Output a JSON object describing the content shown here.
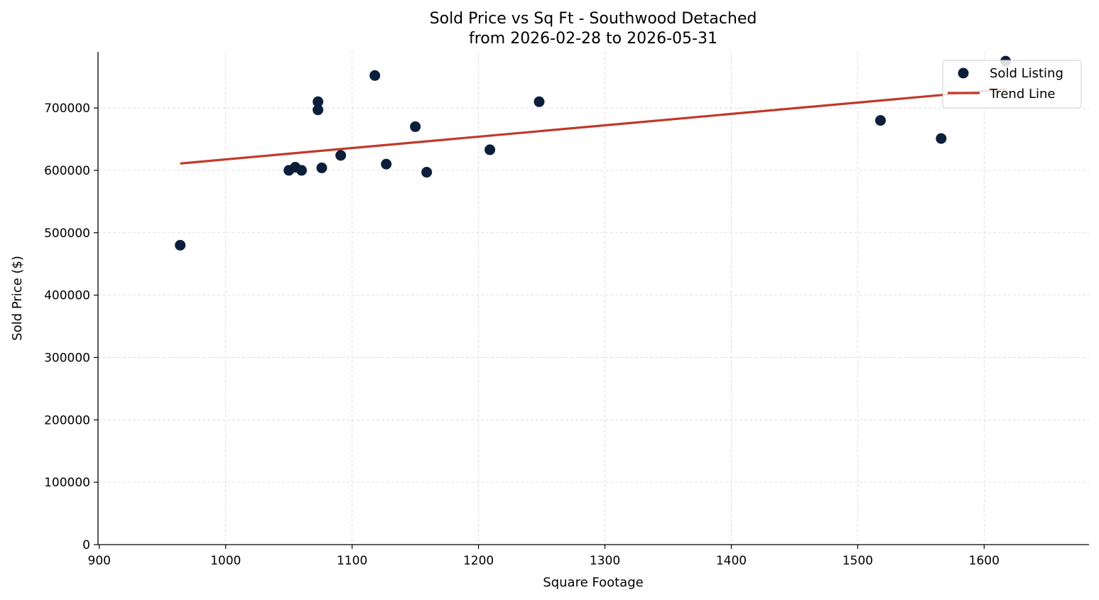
{
  "chart_data": {
    "type": "scatter",
    "title": "Sold Price vs Sq Ft - Southwood Detached",
    "subtitle": "from 2026-02-28 to 2026-05-31",
    "xlabel": "Square Footage",
    "ylabel": "Sold Price ($)",
    "xlim": [
      899,
      1683
    ],
    "ylim": [
      0,
      790000
    ],
    "xticks": [
      900,
      1000,
      1100,
      1200,
      1300,
      1400,
      1500,
      1600
    ],
    "yticks": [
      0,
      100000,
      200000,
      300000,
      400000,
      500000,
      600000,
      700000
    ],
    "grid": true,
    "legend_position": "top-right",
    "series": [
      {
        "name": "Sold Listing",
        "kind": "scatter",
        "color": "#0b1f3a",
        "points": [
          {
            "x": 964,
            "y": 480000
          },
          {
            "x": 1050,
            "y": 600000
          },
          {
            "x": 1055,
            "y": 605000
          },
          {
            "x": 1060,
            "y": 600000
          },
          {
            "x": 1073,
            "y": 710000
          },
          {
            "x": 1073,
            "y": 697000
          },
          {
            "x": 1076,
            "y": 604000
          },
          {
            "x": 1091,
            "y": 624000
          },
          {
            "x": 1118,
            "y": 752000
          },
          {
            "x": 1127,
            "y": 610000
          },
          {
            "x": 1150,
            "y": 670000
          },
          {
            "x": 1159,
            "y": 597000
          },
          {
            "x": 1209,
            "y": 633000
          },
          {
            "x": 1248,
            "y": 710000
          },
          {
            "x": 1518,
            "y": 680000
          },
          {
            "x": 1566,
            "y": 651000
          },
          {
            "x": 1617,
            "y": 775000
          }
        ]
      },
      {
        "name": "Trend Line",
        "kind": "line",
        "color": "#c0392b",
        "points": [
          {
            "x": 964,
            "y": 611000
          },
          {
            "x": 1617,
            "y": 730000
          }
        ]
      }
    ]
  }
}
